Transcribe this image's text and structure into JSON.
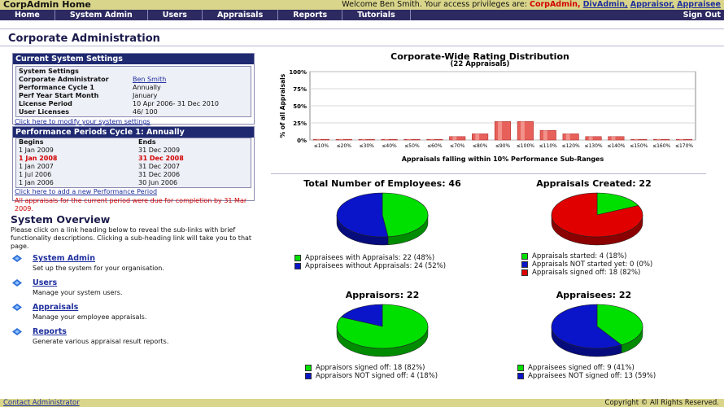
{
  "app_title": "CorpAdmin Home",
  "welcome": {
    "text": "Welcome Ben Smith. Your access privileges are:",
    "current_role": "CorpAdmin,",
    "roles": [
      "DivAdmin,",
      "Appraisor,",
      "Appraisee"
    ]
  },
  "nav": {
    "items": [
      "Home",
      "System Admin",
      "Users",
      "Appraisals",
      "Reports",
      "Tutorials"
    ],
    "sign_out": "Sign Out"
  },
  "page_title": "Corporate Administration",
  "settings": {
    "title": "Current System Settings",
    "subtitle": "System Settings",
    "rows": [
      {
        "k": "Corporate Administrator",
        "v": "Ben Smith"
      },
      {
        "k": "Performance Cycle 1",
        "v": "Annually"
      },
      {
        "k": "Perf Year Start Month",
        "v": "January"
      },
      {
        "k": "License Period",
        "v": "10 Apr 2006- 31 Dec 2010"
      },
      {
        "k": "User Licenses",
        "v": "46/ 100"
      }
    ],
    "modify_link": "Click here to modify your system settings"
  },
  "periods": {
    "title": "Performance Periods Cycle 1: Annually",
    "col_begins": "Begins",
    "col_ends": "Ends",
    "rows": [
      {
        "b": "1 Jan 2009",
        "e": "31 Dec 2009",
        "current": false
      },
      {
        "b": "1 Jan 2008",
        "e": "31 Dec 2008",
        "current": true
      },
      {
        "b": "1 Jan 2007",
        "e": "31 Dec 2007",
        "current": false
      },
      {
        "b": "1 Jul 2006",
        "e": "31 Dec 2006",
        "current": false
      },
      {
        "b": "1 Jan 2006",
        "e": "30 Jun 2006",
        "current": false
      }
    ],
    "add_link": "Click here to add a new Performance Period",
    "warning": "All appraisals for the current period were due for completion by 31 Mar 2009."
  },
  "overview": {
    "title": "System Overview",
    "desc": "Please click on a link heading below to reveal the sub-links with brief functionality descriptions. Clicking a sub-heading link will take you to that page.",
    "items": [
      {
        "title": "System Admin",
        "desc": "Set up the system for your organisation."
      },
      {
        "title": "Users",
        "desc": "Manage your system users."
      },
      {
        "title": "Appraisals",
        "desc": "Manage your employee appraisals."
      },
      {
        "title": "Reports",
        "desc": "Generate various appraisal result reports."
      }
    ]
  },
  "colors": {
    "green": "#00e000",
    "blue": "#0a14c8",
    "red": "#e00000",
    "bar": "#e8605a"
  },
  "chart_data": [
    {
      "type": "bar",
      "title": "Corporate-Wide Rating Distribution",
      "subtitle": "(22 Appraisals)",
      "xlabel": "Appraisals falling within 10% Performance Sub-Ranges",
      "ylabel": "% of all Appraisals",
      "ylim": [
        0,
        100
      ],
      "yticks": [
        "100%",
        "75%",
        "50%",
        "25%",
        "0%"
      ],
      "categories": [
        "≤10%",
        "≤20%",
        "≤30%",
        "≤40%",
        "≤50%",
        "≤60%",
        "≤70%",
        "≤80%",
        "≤90%",
        "≤100%",
        "≤110%",
        "≤120%",
        "≤130%",
        "≤140%",
        "≤150%",
        "≤160%",
        "≤170%"
      ],
      "values": [
        1,
        1,
        1,
        1,
        1,
        1,
        5,
        9,
        27,
        27,
        14,
        9,
        5,
        5,
        1,
        1,
        1
      ],
      "grid": true
    },
    {
      "type": "pie",
      "title": "Total Number of Employees: 46",
      "slices": [
        {
          "label": "Appraisees with Appraisals: 22 (48%)",
          "value": 48,
          "color": "green"
        },
        {
          "label": "Appraisees without Appraisals: 24 (52%)",
          "value": 52,
          "color": "blue"
        }
      ]
    },
    {
      "type": "pie",
      "title": "Appraisals Created: 22",
      "slices": [
        {
          "label": "Appraisals started: 4 (18%)",
          "value": 18,
          "color": "green"
        },
        {
          "label": "Appraisals NOT started yet: 0 (0%)",
          "value": 0,
          "color": "blue"
        },
        {
          "label": "Appraisals signed off: 18 (82%)",
          "value": 82,
          "color": "red"
        }
      ]
    },
    {
      "type": "pie",
      "title": "Appraisors: 22",
      "slices": [
        {
          "label": "Appraisors signed off: 18 (82%)",
          "value": 82,
          "color": "green"
        },
        {
          "label": "Appraisors NOT signed off: 4 (18%)",
          "value": 18,
          "color": "blue"
        }
      ]
    },
    {
      "type": "pie",
      "title": "Appraisees: 22",
      "slices": [
        {
          "label": "Appraisees signed off: 9 (41%)",
          "value": 41,
          "color": "green"
        },
        {
          "label": "Appraisees NOT signed off: 13 (59%)",
          "value": 59,
          "color": "blue"
        }
      ]
    }
  ],
  "footer": {
    "contact": "Contact Administrator",
    "copyright": "Copyright © All Rights Reserved."
  }
}
